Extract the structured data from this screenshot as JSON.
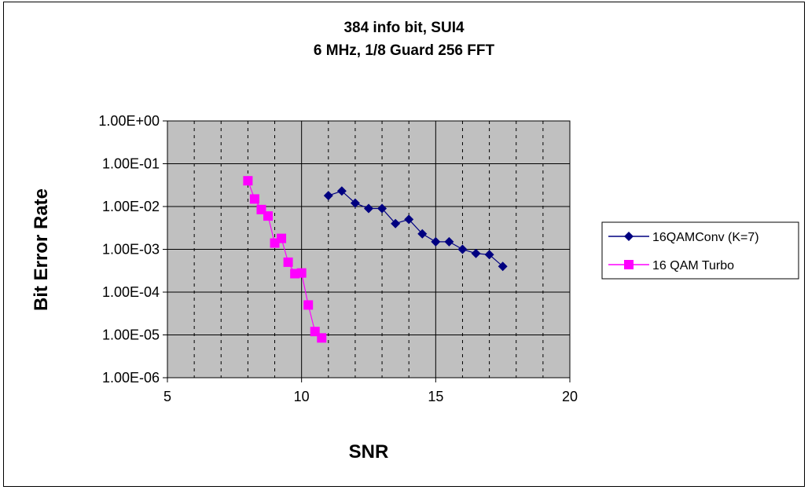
{
  "chart_data": {
    "type": "scatter",
    "title_lines": [
      "384 info bit, SUI4",
      "6 MHz, 1/8 Guard 256 FFT"
    ],
    "xlabel": "SNR",
    "ylabel": "Bit Error Rate",
    "xlim": [
      5,
      20
    ],
    "ylim_log10": [
      -6,
      0
    ],
    "y_scale": "log",
    "x_ticks": [
      "5",
      "10",
      "15",
      "20"
    ],
    "y_ticks": [
      "1.00E+00",
      "1.00E-01",
      "1.00E-02",
      "1.00E-03",
      "1.00E-04",
      "1.00E-05",
      "1.00E-06"
    ],
    "grid": true,
    "legend_position": "right",
    "series": [
      {
        "name": "16QAMConv (K=7)",
        "color": "#000080",
        "marker": "diamond",
        "x": [
          11.0,
          11.5,
          12.0,
          12.5,
          13.0,
          13.5,
          14.0,
          14.5,
          15.0,
          15.5,
          16.0,
          16.5,
          17.0,
          17.5
        ],
        "y": [
          0.018,
          0.023,
          0.012,
          0.009,
          0.009,
          0.004,
          0.005,
          0.0023,
          0.0015,
          0.0015,
          0.001,
          0.0008,
          0.00075,
          0.0004
        ]
      },
      {
        "name": "16 QAM Turbo",
        "color": "#ff00ff",
        "marker": "square",
        "x": [
          8.0,
          8.25,
          8.5,
          8.75,
          9.0,
          9.25,
          9.5,
          9.75,
          10.0,
          10.25,
          10.5,
          10.75
        ],
        "y": [
          0.04,
          0.015,
          0.0085,
          0.006,
          0.0014,
          0.0018,
          0.0005,
          0.00027,
          0.00028,
          5e-05,
          1.2e-05,
          8.5e-06
        ]
      }
    ]
  }
}
